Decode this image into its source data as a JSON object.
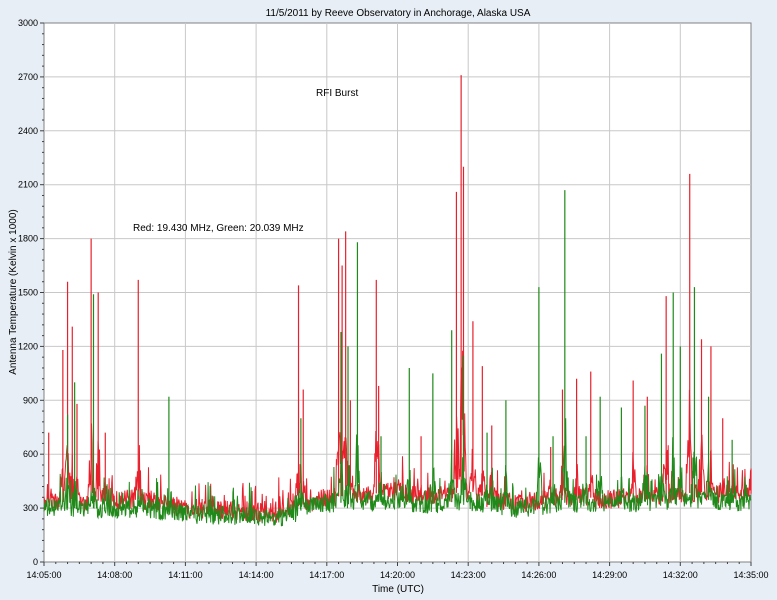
{
  "chart_data": {
    "type": "line",
    "title": "11/5/2011  by  Reeve Observatory  in  Anchorage, Alaska  USA",
    "xlabel": "Time (UTC)",
    "ylabel": "Antenna Temperature (Kelvin x 1000)",
    "x_ticks": [
      "14:05:00",
      "14:08:00",
      "14:11:00",
      "14:14:00",
      "14:17:00",
      "14:20:00",
      "14:23:00",
      "14:26:00",
      "14:29:00",
      "14:32:00",
      "14:35:00"
    ],
    "xlim_minutes": [
      0,
      30
    ],
    "ylim": [
      0,
      3000
    ],
    "y_ticks": [
      0,
      300,
      600,
      900,
      1200,
      1500,
      1800,
      2100,
      2400,
      2700,
      3000
    ],
    "grid": true,
    "annotations": [
      "RFI Burst",
      "Red: 19.430 MHz, Green: 20.039 MHz"
    ],
    "series": [
      {
        "name": "19.430 MHz",
        "color": "#e8202c",
        "baseline": [
          [
            0,
            330
          ],
          [
            2,
            340
          ],
          [
            4,
            350
          ],
          [
            6,
            300
          ],
          [
            8,
            290
          ],
          [
            10,
            270
          ],
          [
            11,
            320
          ],
          [
            12,
            360
          ],
          [
            14,
            380
          ],
          [
            15,
            400
          ],
          [
            16,
            360
          ],
          [
            17,
            370
          ],
          [
            18,
            400
          ],
          [
            19,
            350
          ],
          [
            20,
            330
          ],
          [
            21,
            340
          ],
          [
            22,
            370
          ],
          [
            24,
            350
          ],
          [
            26,
            370
          ],
          [
            27,
            380
          ],
          [
            28,
            390
          ],
          [
            29,
            380
          ],
          [
            30,
            380
          ]
        ],
        "peaks": [
          [
            0.2,
            720
          ],
          [
            0.8,
            1180
          ],
          [
            1.0,
            1560
          ],
          [
            1.2,
            1310
          ],
          [
            1.4,
            880
          ],
          [
            2.0,
            1800
          ],
          [
            2.3,
            1500
          ],
          [
            2.6,
            720
          ],
          [
            4.0,
            1570
          ],
          [
            10.8,
            1540
          ],
          [
            11.0,
            960
          ],
          [
            12.5,
            1800
          ],
          [
            12.65,
            1650
          ],
          [
            12.8,
            1840
          ],
          [
            13.0,
            900
          ],
          [
            14.1,
            1570
          ],
          [
            14.2,
            980
          ],
          [
            16.0,
            700
          ],
          [
            17.5,
            2060
          ],
          [
            17.7,
            2710
          ],
          [
            17.8,
            2200
          ],
          [
            18.2,
            1340
          ],
          [
            18.6,
            1090
          ],
          [
            19.0,
            760
          ],
          [
            21.5,
            640
          ],
          [
            22.0,
            960
          ],
          [
            22.6,
            1020
          ],
          [
            23.2,
            1060
          ],
          [
            25.0,
            1010
          ],
          [
            25.6,
            920
          ],
          [
            26.4,
            1480
          ],
          [
            27.4,
            2160
          ],
          [
            27.9,
            1240
          ],
          [
            28.3,
            1200
          ],
          [
            28.8,
            800
          ],
          [
            30.0,
            520
          ]
        ]
      },
      {
        "name": "20.039 MHz",
        "color": "#1f8a1a",
        "baseline": [
          [
            0,
            300
          ],
          [
            2,
            300
          ],
          [
            4,
            300
          ],
          [
            6,
            270
          ],
          [
            8,
            260
          ],
          [
            10,
            250
          ],
          [
            11,
            290
          ],
          [
            12,
            330
          ],
          [
            14,
            330
          ],
          [
            15,
            340
          ],
          [
            16,
            320
          ],
          [
            17,
            330
          ],
          [
            18,
            340
          ],
          [
            19,
            320
          ],
          [
            20,
            300
          ],
          [
            21,
            310
          ],
          [
            22,
            330
          ],
          [
            24,
            320
          ],
          [
            26,
            340
          ],
          [
            27,
            350
          ],
          [
            28,
            350
          ],
          [
            29,
            330
          ],
          [
            30,
            330
          ]
        ],
        "peaks": [
          [
            1.0,
            820
          ],
          [
            1.3,
            1000
          ],
          [
            2.1,
            1490
          ],
          [
            5.3,
            920
          ],
          [
            10.9,
            800
          ],
          [
            12.6,
            1280
          ],
          [
            12.9,
            1200
          ],
          [
            13.3,
            1780
          ],
          [
            14.3,
            700
          ],
          [
            15.5,
            1080
          ],
          [
            16.5,
            1050
          ],
          [
            17.3,
            1290
          ],
          [
            17.8,
            1150
          ],
          [
            18.8,
            720
          ],
          [
            19.6,
            900
          ],
          [
            21.0,
            1530
          ],
          [
            21.6,
            700
          ],
          [
            22.1,
            2070
          ],
          [
            23.0,
            700
          ],
          [
            23.6,
            920
          ],
          [
            24.5,
            860
          ],
          [
            25.5,
            870
          ],
          [
            26.2,
            1160
          ],
          [
            26.7,
            1500
          ],
          [
            27.0,
            1200
          ],
          [
            27.6,
            1530
          ],
          [
            28.2,
            920
          ],
          [
            29.2,
            680
          ],
          [
            29.8,
            430
          ]
        ]
      }
    ]
  }
}
